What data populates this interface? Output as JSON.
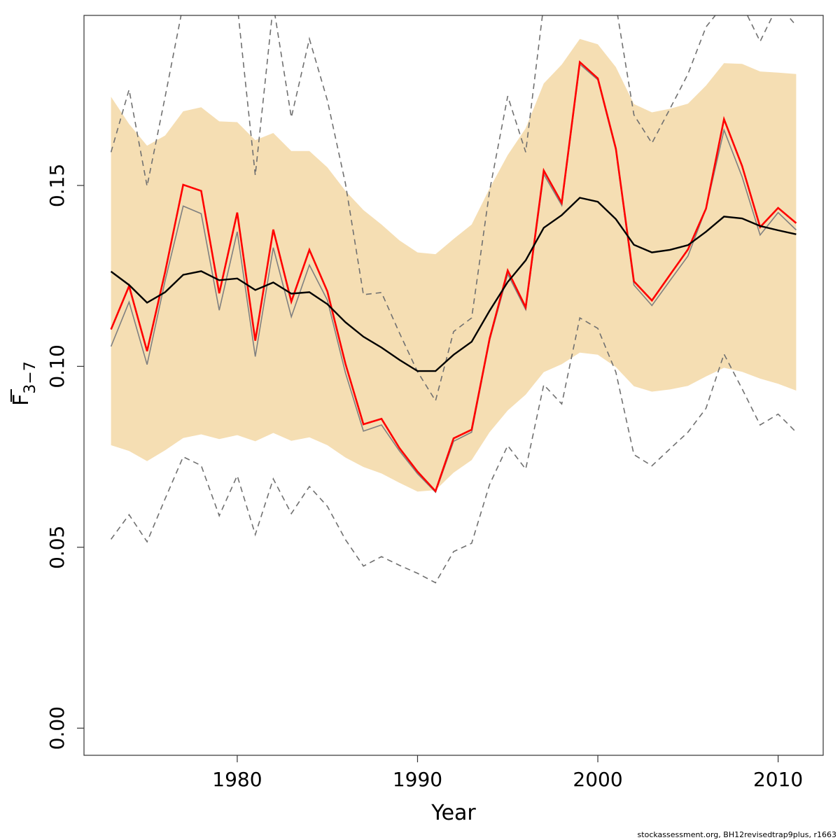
{
  "chart_data": {
    "type": "line",
    "title": "",
    "xlabel": "Year",
    "ylabel": {
      "main": "F",
      "subscript": "3−7"
    },
    "xlim": [
      1971.5,
      2012.5
    ],
    "ylim": [
      -0.0075,
      0.197
    ],
    "x_ticks": [
      1980,
      1990,
      2000,
      2010
    ],
    "x_tick_labels": [
      "1980",
      "1990",
      "2000",
      "2010"
    ],
    "y_ticks": [
      0.0,
      0.05,
      0.1,
      0.15
    ],
    "y_tick_labels": [
      "0.00",
      "0.05",
      "0.10",
      "0.15"
    ],
    "grid": false,
    "x": [
      1973,
      1974,
      1975,
      1976,
      1977,
      1978,
      1979,
      1980,
      1981,
      1982,
      1983,
      1984,
      1985,
      1986,
      1987,
      1988,
      1989,
      1990,
      1991,
      1992,
      1993,
      1994,
      1995,
      1996,
      1997,
      1998,
      1999,
      2000,
      2001,
      2002,
      2003,
      2004,
      2005,
      2006,
      2007,
      2008,
      2009,
      2010,
      2011
    ],
    "band": {
      "color": "#f5deb3",
      "upper": [
        0.1745,
        0.167,
        0.161,
        0.1638,
        0.1705,
        0.1716,
        0.1677,
        0.1675,
        0.1625,
        0.1645,
        0.1595,
        0.1595,
        0.155,
        0.1485,
        0.1432,
        0.1392,
        0.1348,
        0.1315,
        0.131,
        0.1352,
        0.1392,
        0.1492,
        0.1584,
        0.1658,
        0.1782,
        0.1834,
        0.1905,
        0.189,
        0.1827,
        0.1725,
        0.1702,
        0.1712,
        0.1726,
        0.1776,
        0.1838,
        0.1836,
        0.1815,
        0.1812,
        0.1808
      ],
      "lower": [
        0.0782,
        0.0766,
        0.0738,
        0.0768,
        0.0802,
        0.0812,
        0.0799,
        0.081,
        0.0793,
        0.0816,
        0.0794,
        0.0804,
        0.0782,
        0.0748,
        0.0722,
        0.0704,
        0.0678,
        0.0654,
        0.0658,
        0.0706,
        0.0741,
        0.0818,
        0.0878,
        0.0922,
        0.0984,
        0.1006,
        0.1038,
        0.1032,
        0.0998,
        0.0945,
        0.093,
        0.0936,
        0.0946,
        0.0972,
        0.0996,
        0.0985,
        0.0966,
        0.0952,
        0.0933
      ]
    },
    "series": [
      {
        "role": "dashed-upper",
        "color": "#707070",
        "dash": true,
        "values": [
          0.1592,
          0.1765,
          0.1498,
          0.1745,
          0.2,
          0.2,
          0.2,
          0.2,
          0.1528,
          0.2,
          0.1688,
          0.1905,
          0.1735,
          0.1505,
          0.1198,
          0.1204,
          0.1092,
          0.0985,
          0.0905,
          0.1096,
          0.1134,
          0.1486,
          0.1747,
          0.1592,
          0.2,
          0.2,
          0.2,
          0.2,
          0.2,
          0.1695,
          0.1617,
          0.1712,
          0.1808,
          0.1938,
          0.2,
          0.2,
          0.1898,
          0.2,
          0.1942
        ]
      },
      {
        "role": "dashed-lower",
        "color": "#707070",
        "dash": true,
        "values": [
          0.0522,
          0.059,
          0.0515,
          0.0634,
          0.075,
          0.0726,
          0.0587,
          0.0698,
          0.0535,
          0.0689,
          0.0593,
          0.0668,
          0.0613,
          0.0521,
          0.0448,
          0.0474,
          0.045,
          0.0428,
          0.0402,
          0.0488,
          0.0511,
          0.0674,
          0.0781,
          0.0716,
          0.0949,
          0.0896,
          0.1134,
          0.1105,
          0.0984,
          0.0756,
          0.0725,
          0.0772,
          0.0818,
          0.0884,
          0.1034,
          0.0938,
          0.0838,
          0.0868,
          0.0818
        ]
      },
      {
        "role": "grey-line",
        "color": "#808080",
        "dash": false,
        "values": [
          0.1055,
          0.1178,
          0.1005,
          0.1237,
          0.1443,
          0.1422,
          0.1155,
          0.1372,
          0.1027,
          0.1328,
          0.1137,
          0.128,
          0.1183,
          0.0982,
          0.0821,
          0.0838,
          0.0766,
          0.0703,
          0.0652,
          0.0793,
          0.0818,
          0.1072,
          0.1255,
          0.1157,
          0.1531,
          0.1445,
          0.1835,
          0.1792,
          0.1597,
          0.1225,
          0.1168,
          0.1237,
          0.1305,
          0.1436,
          0.1653,
          0.1524,
          0.1363,
          0.1425,
          0.1377
        ]
      },
      {
        "role": "red-line",
        "color": "#ff0000",
        "dash": false,
        "values": [
          0.1102,
          0.1222,
          0.1042,
          0.1261,
          0.1502,
          0.1485,
          0.1202,
          0.1425,
          0.1071,
          0.1378,
          0.1179,
          0.1322,
          0.1207,
          0.1007,
          0.084,
          0.0855,
          0.0774,
          0.0709,
          0.0655,
          0.0801,
          0.0825,
          0.1077,
          0.1265,
          0.1163,
          0.1541,
          0.1452,
          0.1841,
          0.1796,
          0.1602,
          0.1235,
          0.1182,
          0.1253,
          0.1323,
          0.1436,
          0.1683,
          0.1554,
          0.1385,
          0.1438,
          0.1396
        ]
      },
      {
        "role": "black-line",
        "color": "#000000",
        "dash": false,
        "values": [
          0.1262,
          0.1225,
          0.1176,
          0.1205,
          0.1253,
          0.1263,
          0.1238,
          0.1243,
          0.1211,
          0.1232,
          0.1201,
          0.1205,
          0.1172,
          0.1122,
          0.1082,
          0.1052,
          0.1018,
          0.0987,
          0.0987,
          0.1032,
          0.1068,
          0.1154,
          0.1233,
          0.1293,
          0.1383,
          0.1418,
          0.1466,
          0.1455,
          0.1407,
          0.1336,
          0.1315,
          0.1322,
          0.1335,
          0.1372,
          0.1414,
          0.1409,
          0.1388,
          0.1376,
          0.1365
        ]
      }
    ]
  },
  "footer": {
    "text": "stockassessment.org, BH12revisedtrap9plus, r1663"
  }
}
